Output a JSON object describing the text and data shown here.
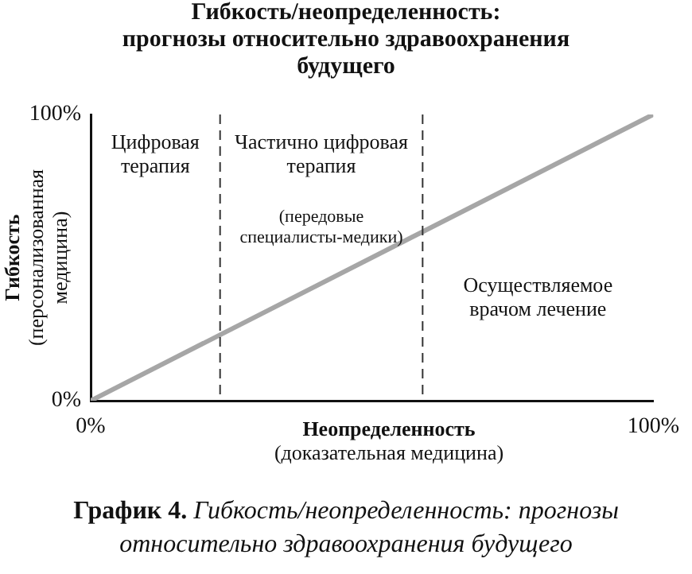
{
  "chart_data": {
    "type": "line",
    "title": "Гибкость/неопределенность:\nпрогнозы относительно здравоохранения\nбудущего",
    "xlabel": "Неопределенность\n(доказательная медицина)",
    "ylabel": "Гибкость\n(персонализованная\nмедицина)",
    "x": [
      0,
      100
    ],
    "series": [
      {
        "color": "#a6a6a6",
        "values": [
          0,
          100
        ]
      }
    ],
    "xlim": [
      0,
      100
    ],
    "ylim": [
      0,
      100
    ],
    "xticks": [
      {
        "value": 0,
        "label": "0%"
      },
      {
        "value": 100,
        "label": "100%"
      }
    ],
    "yticks": [
      {
        "value": 0,
        "label": "0%"
      },
      {
        "value": 100,
        "label": "100%"
      }
    ],
    "grid": false,
    "legend": false,
    "marker": "none",
    "line_style": "solid",
    "ref_lines": [
      {
        "axis": "x",
        "value": 23,
        "line_style": "dashed",
        "color": "#333333"
      },
      {
        "axis": "x",
        "value": 59,
        "line_style": "dashed",
        "color": "#333333"
      }
    ],
    "annotations": [
      "Цифровая\nтерапия",
      "Частично цифровая\nтерапия",
      "(передовые\nспециалисты-медики)",
      "Осуществляемое\nврачом лечение",
      "График 4.",
      "Гибкость/неопределенность: прогнозы относительно здравоохранения будущего"
    ]
  }
}
